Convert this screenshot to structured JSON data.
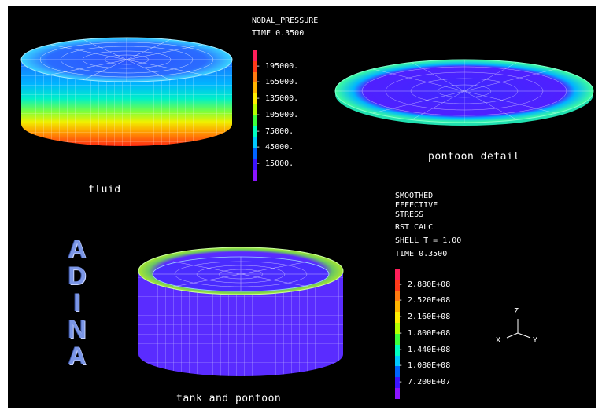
{
  "pressure_legend": {
    "title": "NODAL_PRESSURE",
    "time": "TIME 0.3500",
    "ticks": [
      "195000.",
      "165000.",
      "135000.",
      "105000.",
      "75000.",
      "45000.",
      "15000."
    ],
    "colors": [
      "#ff1e5a",
      "#ff3a1a",
      "#ff7a10",
      "#ffb400",
      "#ffee00",
      "#b4ff00",
      "#3cff3c",
      "#00ffc0",
      "#00c8ff",
      "#0064ff",
      "#3c14ff",
      "#8c14ff"
    ]
  },
  "stress_legend": {
    "lines": [
      "SMOOTHED",
      "EFFECTIVE",
      "STRESS"
    ],
    "calc": "RST CALC",
    "shell": "SHELL T = 1.00",
    "time": "TIME 0.3500",
    "ticks": [
      "2.880E+08",
      "2.520E+08",
      "2.160E+08",
      "1.800E+08",
      "1.440E+08",
      "1.080E+08",
      "7.200E+07"
    ],
    "colors": [
      "#ff1e5a",
      "#ff3a1a",
      "#ff7a10",
      "#ffb400",
      "#ffee00",
      "#b4ff00",
      "#3cff3c",
      "#00ffc0",
      "#00c8ff",
      "#0064ff",
      "#3c14ff",
      "#8c14ff"
    ]
  },
  "captions": {
    "fluid": "fluid",
    "pontoon": "pontoon detail",
    "tank": "tank and pontoon"
  },
  "logo": [
    "A",
    "D",
    "I",
    "N",
    "A"
  ],
  "axes": {
    "z": "Z",
    "x": "X",
    "y": "Y"
  }
}
